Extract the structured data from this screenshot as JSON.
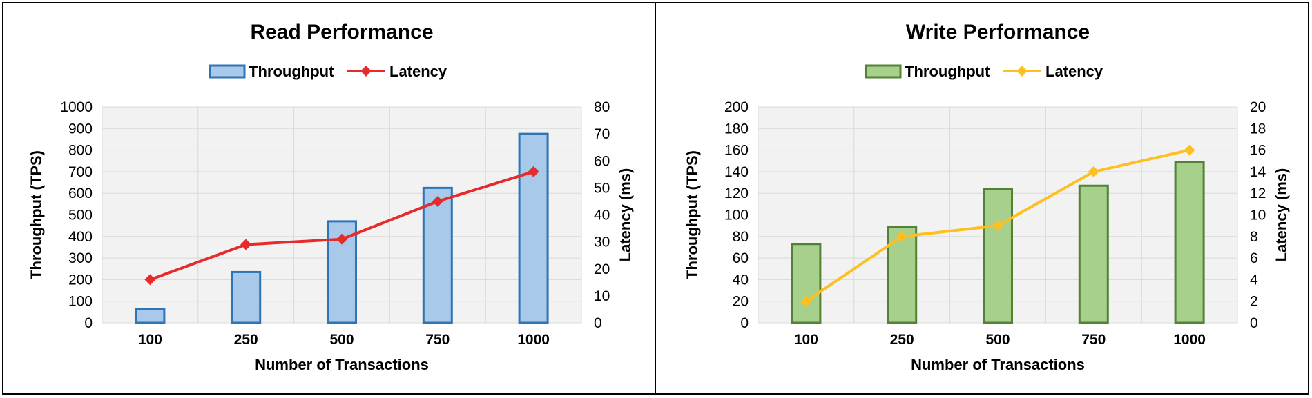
{
  "chart_data": [
    {
      "type": "bar",
      "title": "Read Performance",
      "categories": [
        "100",
        "250",
        "500",
        "750",
        "1000"
      ],
      "xlabel": "Number of Transactions",
      "ylabel": "Throughput (TPS)",
      "y2label": "Latency (ms)",
      "ylim": [
        0,
        1000
      ],
      "yticks": [
        0,
        100,
        200,
        300,
        400,
        500,
        600,
        700,
        800,
        900,
        1000
      ],
      "y2lim": [
        0,
        80
      ],
      "y2ticks": [
        0,
        10,
        20,
        30,
        40,
        50,
        60,
        70,
        80
      ],
      "grid": true,
      "legend_position": "top",
      "series": [
        {
          "name": "Throughput",
          "kind": "bar",
          "axis": "left",
          "values": [
            65,
            235,
            470,
            625,
            875
          ],
          "fill": "#a9c9ea",
          "stroke": "#2e75b6"
        },
        {
          "name": "Latency",
          "kind": "line",
          "axis": "right",
          "values": [
            16,
            29,
            31,
            45,
            56
          ],
          "stroke": "#e52b2b",
          "marker": "diamond"
        }
      ]
    },
    {
      "type": "bar",
      "title": "Write Performance",
      "categories": [
        "100",
        "250",
        "500",
        "750",
        "1000"
      ],
      "xlabel": "Number of Transactions",
      "ylabel": "Throughput (TPS)",
      "y2label": "Latency (ms)",
      "ylim": [
        0,
        200
      ],
      "yticks": [
        0,
        20,
        40,
        60,
        80,
        100,
        120,
        140,
        160,
        180,
        200
      ],
      "y2lim": [
        0,
        20
      ],
      "y2ticks": [
        0,
        2,
        4,
        6,
        8,
        10,
        12,
        14,
        16,
        18,
        20
      ],
      "grid": true,
      "legend_position": "top",
      "series": [
        {
          "name": "Throughput",
          "kind": "bar",
          "axis": "left",
          "values": [
            73,
            89,
            124,
            127,
            149
          ],
          "fill": "#a6d08c",
          "stroke": "#548235"
        },
        {
          "name": "Latency",
          "kind": "line",
          "axis": "right",
          "values": [
            2,
            8,
            9,
            14,
            16
          ],
          "stroke": "#fdbf21",
          "marker": "diamond"
        }
      ]
    }
  ]
}
